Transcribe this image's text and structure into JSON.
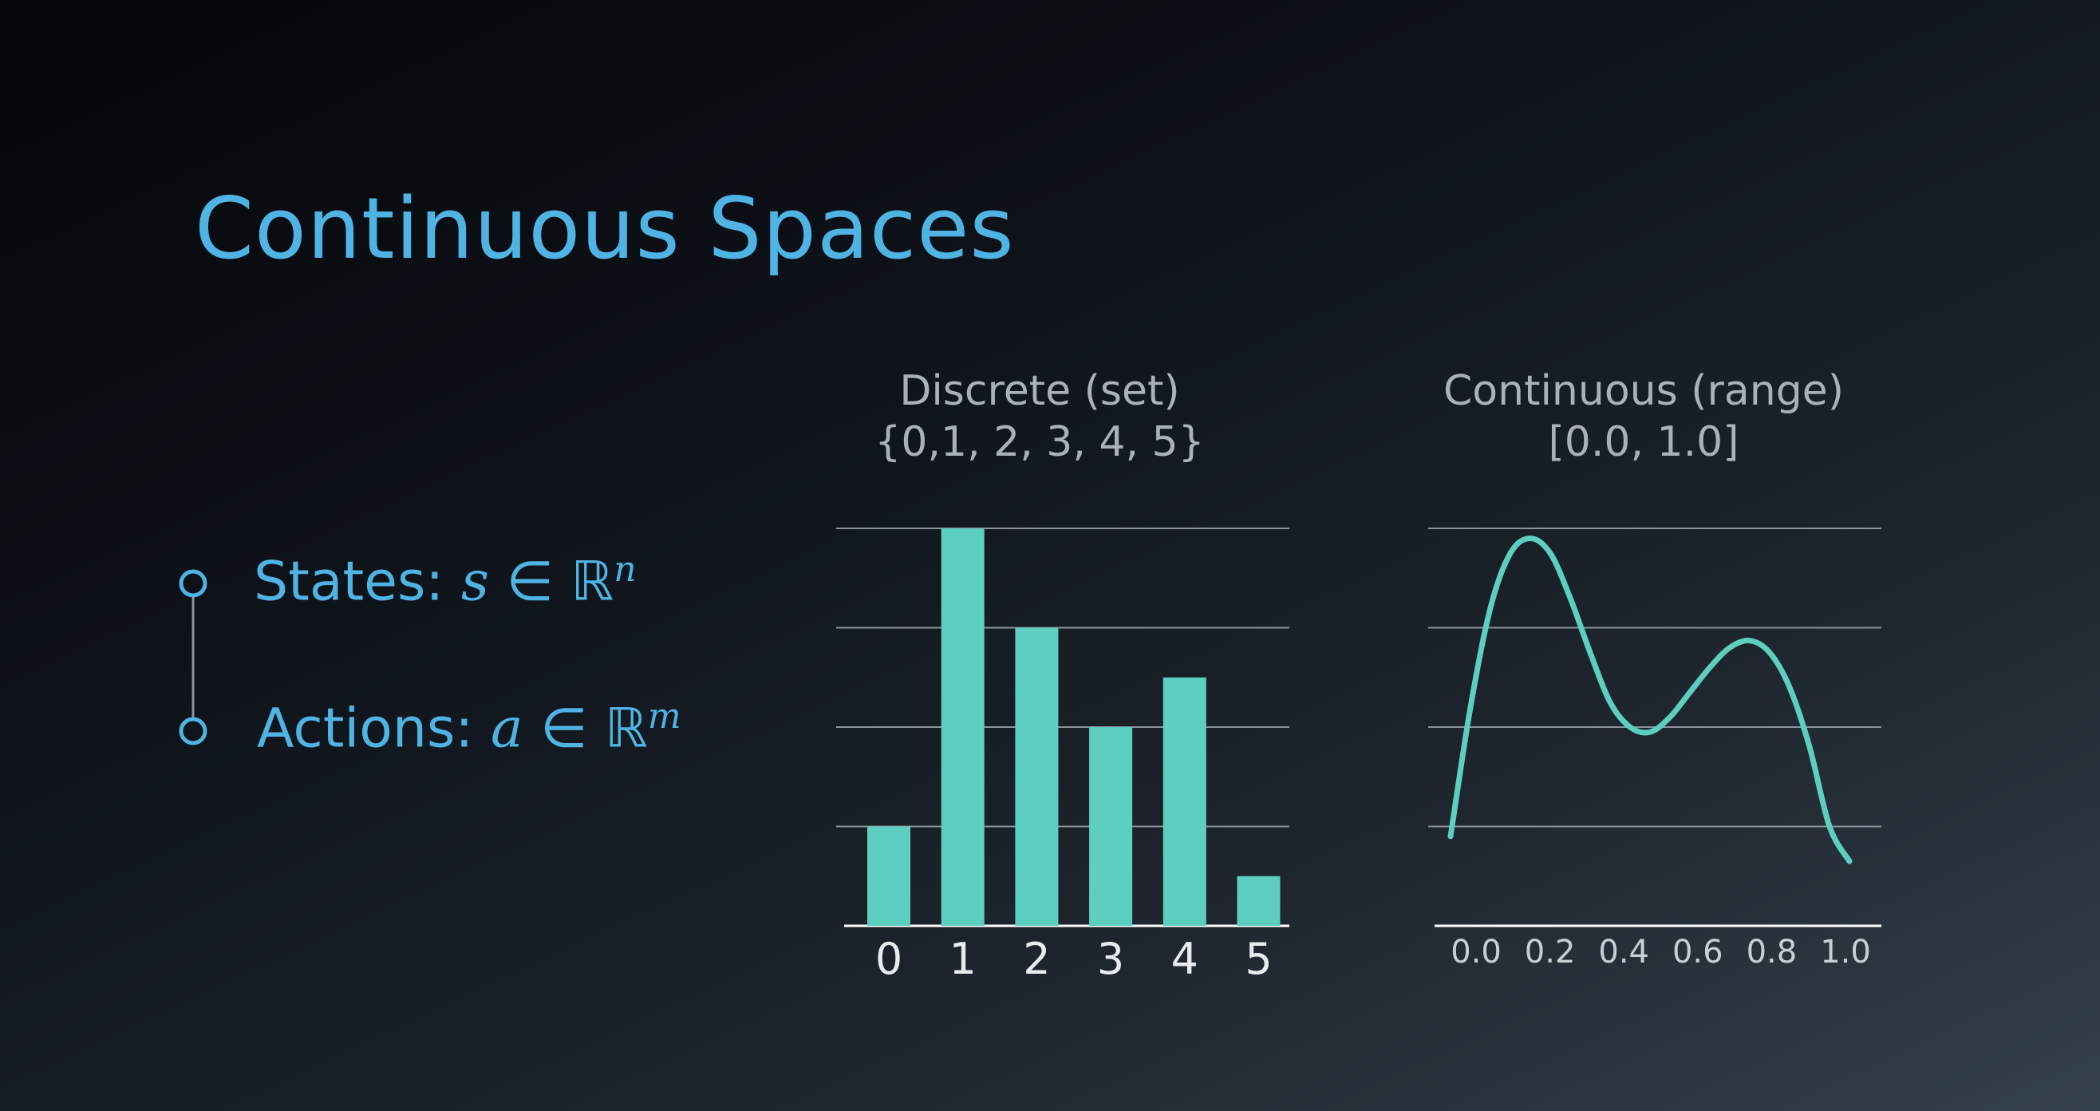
{
  "title": "Continuous Spaces",
  "bullets": [
    {
      "label": "States:",
      "math_var": "s",
      "math_rel": "∈",
      "math_set": "ℝ",
      "exponent": "n"
    },
    {
      "label": "Actions:",
      "math_var": "a",
      "math_rel": "∈",
      "math_set": "ℝ",
      "exponent": "m"
    }
  ],
  "colors": {
    "accent": "#4fb4e3",
    "bar": "#5ccfc0",
    "grid": "#8a939d",
    "text": "#a9b1bb"
  },
  "chart_data": [
    {
      "type": "bar",
      "title": "Discrete (set)",
      "subtitle": "{0,1, 2, 3, 4, 5}",
      "categories": [
        "0",
        "1",
        "2",
        "3",
        "4",
        "5"
      ],
      "values": [
        1,
        4,
        3,
        2,
        2.5,
        0.5
      ],
      "ylim": [
        0,
        4
      ],
      "grid": true
    },
    {
      "type": "line",
      "title": "Continuous (range)",
      "subtitle": "[0.0, 1.0]",
      "x": [
        0.0,
        0.05,
        0.1,
        0.15,
        0.2,
        0.25,
        0.3,
        0.35,
        0.4,
        0.45,
        0.5,
        0.55,
        0.6,
        0.65,
        0.7,
        0.75,
        0.8,
        0.85,
        0.9,
        0.95,
        1.0
      ],
      "y": [
        0.9,
        2.2,
        3.2,
        3.75,
        3.9,
        3.75,
        3.3,
        2.75,
        2.25,
        2.0,
        1.95,
        2.1,
        2.35,
        2.6,
        2.8,
        2.87,
        2.75,
        2.4,
        1.8,
        1.0,
        0.65
      ],
      "xticks": [
        "0.0",
        "0.2",
        "0.4",
        "0.6",
        "0.8",
        "1.0"
      ],
      "xlim": [
        0,
        1
      ],
      "ylim": [
        0,
        4
      ],
      "grid": true
    }
  ]
}
